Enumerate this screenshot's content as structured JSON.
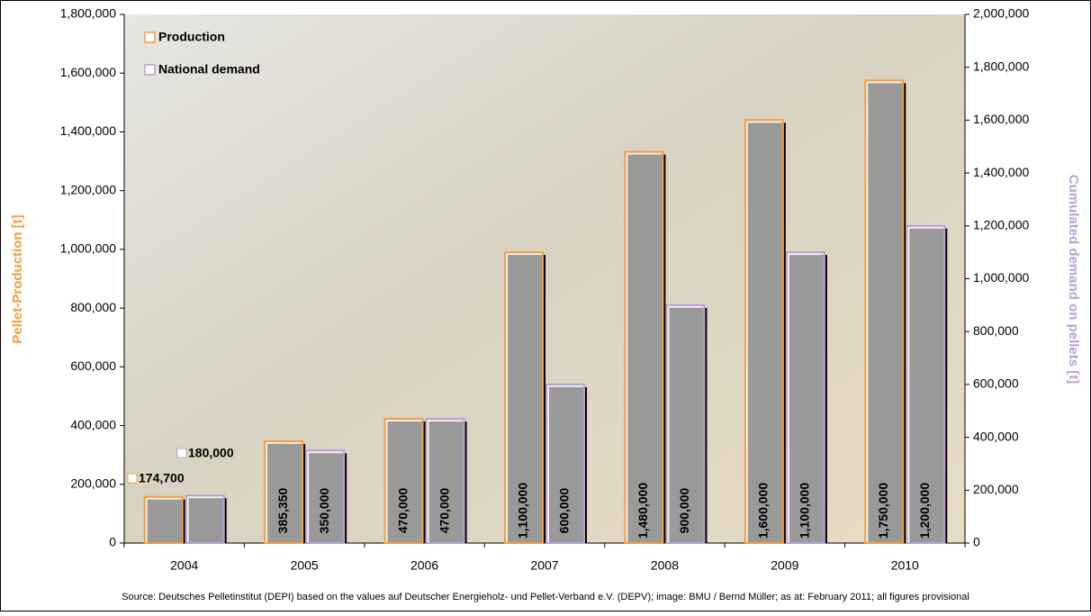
{
  "chart_data": {
    "type": "bar",
    "categories": [
      "2004",
      "2005",
      "2006",
      "2007",
      "2008",
      "2009",
      "2010"
    ],
    "series": [
      {
        "name": "Production",
        "color": "#f0a040",
        "axis": "y2",
        "values": [
          174700,
          385350,
          470000,
          1100000,
          1480000,
          1600000,
          1750000
        ],
        "value_labels": [
          "174,700",
          "385,350",
          "470,000",
          "1,100,000",
          "1,480,000",
          "1,600,000",
          "1,750,000"
        ]
      },
      {
        "name": "National demand",
        "color": "#b9a0d8",
        "axis": "y2",
        "values": [
          180000,
          350000,
          470000,
          600000,
          900000,
          1100000,
          1200000
        ],
        "value_labels": [
          "180,000",
          "350,000",
          "470,000",
          "600,000",
          "900,000",
          "1,100,000",
          "1,200,000"
        ]
      }
    ],
    "ylabel": "Pellet-Production [t]",
    "y2label": "Cumulated demand on pellets [t]",
    "ylim": [
      0,
      1800000
    ],
    "yticks": [
      0,
      {
        "value": 200000,
        "label": "200,000"
      },
      {
        "value": 400000,
        "label": "400,000"
      },
      {
        "value": 600000,
        "label": "600,000"
      },
      {
        "value": 800000,
        "label": "800,000"
      },
      {
        "value": 1000000,
        "label": "1,000,000"
      },
      {
        "value": 1200000,
        "label": "1,200,000"
      },
      {
        "value": 1400000,
        "label": "1,400,000"
      },
      {
        "value": 1600000,
        "label": "1,600,000"
      },
      {
        "value": 1800000,
        "label": "1,800,000"
      }
    ],
    "y2lim": [
      0,
      2000000
    ],
    "y2ticks": [
      0,
      {
        "value": 200000,
        "label": "200,000"
      },
      {
        "value": 400000,
        "label": "400,000"
      },
      {
        "value": 600000,
        "label": "600,000"
      },
      {
        "value": 800000,
        "label": "800,000"
      },
      {
        "value": 1000000,
        "label": "1,000,000"
      },
      {
        "value": 1200000,
        "label": "1,200,000"
      },
      {
        "value": 1400000,
        "label": "1,400,000"
      },
      {
        "value": 1600000,
        "label": "1,600,000"
      },
      {
        "value": 1800000,
        "label": "1,800,000"
      },
      {
        "value": 2000000,
        "label": "2,000,000"
      }
    ],
    "legend": "upper left",
    "source": "Source: Deutsches Pelletinstitut (DEPI) based on the values auf Deutscher Energieholz- und Pellet-Verband e.V. (DEPV); image: BMU / Bernd Müller; as at: February 2011; all figures provisional"
  }
}
